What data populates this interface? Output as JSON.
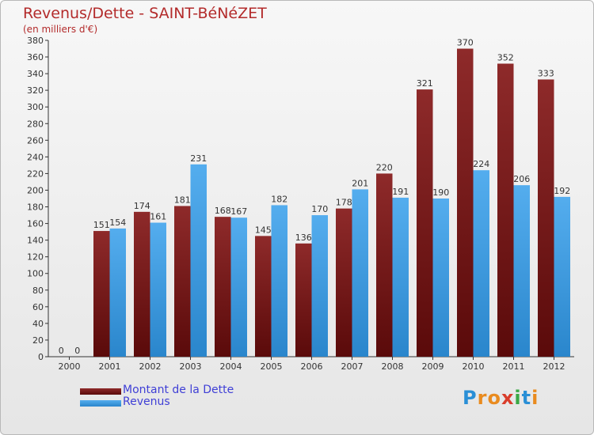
{
  "header": {
    "title": "Revenus/Dette - SAINT-BéNéZET",
    "subtitle": "(en milliers d'€)"
  },
  "chart_data": {
    "type": "bar",
    "categories": [
      "2000",
      "2001",
      "2002",
      "2003",
      "2004",
      "2005",
      "2006",
      "2007",
      "2008",
      "2009",
      "2010",
      "2011",
      "2012"
    ],
    "series": [
      {
        "name": "Montant de la Dette",
        "color": "#7a1c1c",
        "values": [
          0,
          151,
          174,
          181,
          168,
          145,
          136,
          178,
          220,
          321,
          370,
          352,
          333
        ]
      },
      {
        "name": "Revenus",
        "color": "#3b99de",
        "values": [
          0,
          154,
          161,
          231,
          167,
          182,
          170,
          201,
          191,
          190,
          224,
          206,
          192
        ]
      }
    ],
    "ylim": [
      0,
      380
    ],
    "yticks": [
      0,
      20,
      40,
      60,
      80,
      100,
      120,
      140,
      160,
      180,
      200,
      220,
      240,
      260,
      280,
      300,
      320,
      340,
      360,
      380
    ],
    "grid": false,
    "legend_position": "bottom-left"
  },
  "legend": {
    "debt_label": "Montant de la Dette",
    "revenue_label": "Revenus"
  },
  "logo": {
    "letters": [
      "P",
      "r",
      "o",
      "x",
      "i",
      "t",
      "i"
    ],
    "colors": [
      "#2a8fd6",
      "#e98b1f",
      "#e98b1f",
      "#d93d2b",
      "#3aa845",
      "#2a8fd6",
      "#e98b1f"
    ]
  }
}
